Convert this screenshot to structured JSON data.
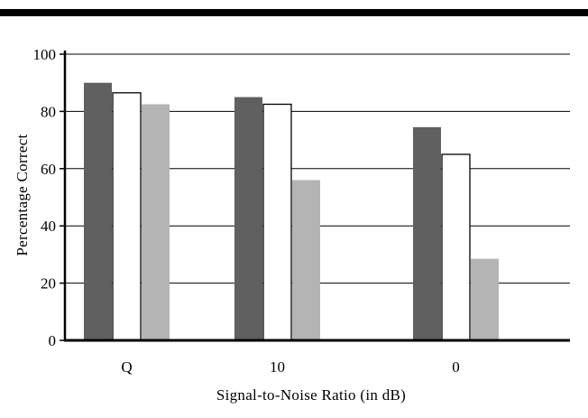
{
  "chart_data": {
    "type": "bar",
    "title": "",
    "xlabel": "Signal-to-Noise Ratio (in dB)",
    "ylabel": "Percentage Correct",
    "ylim": [
      0,
      100
    ],
    "yticks": [
      0,
      20,
      40,
      60,
      80,
      100
    ],
    "grid": true,
    "legend": "none",
    "categories": [
      "Q",
      "10",
      "0"
    ],
    "series": [
      {
        "color": "#606060",
        "values": [
          90,
          85,
          74.5
        ]
      },
      {
        "color": "#ffffff",
        "values": [
          86.5,
          82.5,
          65
        ]
      },
      {
        "color": "#b4b4b4",
        "values": [
          82.5,
          56,
          28.5
        ]
      }
    ]
  }
}
